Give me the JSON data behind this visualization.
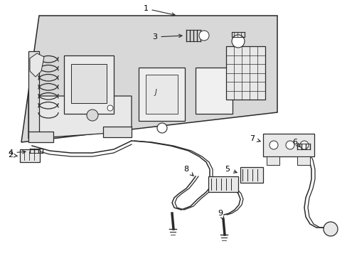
{
  "background_color": "#ffffff",
  "line_color": "#2a2a2a",
  "panel_fill": "#dcdcdc",
  "label_color": "#000000",
  "figsize": [
    4.89,
    3.6
  ],
  "dpi": 100
}
